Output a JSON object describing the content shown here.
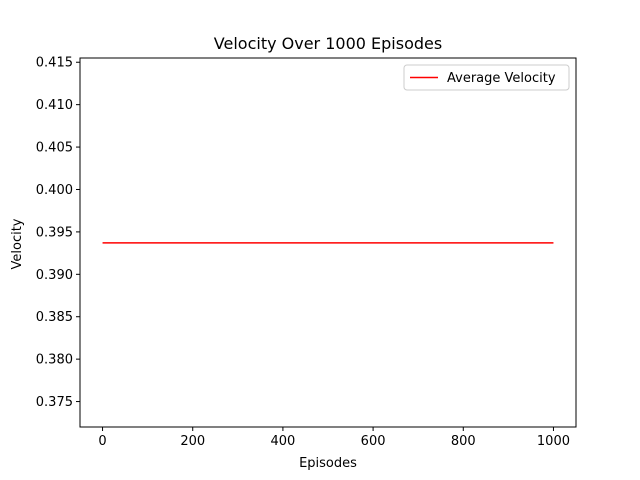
{
  "chart_data": {
    "type": "line",
    "title": "Velocity Over 1000 Episodes",
    "xlabel": "Episodes",
    "ylabel": "Velocity",
    "xlim": [
      -50,
      1050
    ],
    "ylim": [
      0.372,
      0.4155
    ],
    "xticks": [
      0,
      200,
      400,
      600,
      800,
      1000
    ],
    "xtick_labels": [
      "0",
      "200",
      "400",
      "600",
      "800",
      "1000"
    ],
    "yticks": [
      0.375,
      0.38,
      0.385,
      0.39,
      0.395,
      0.4,
      0.405,
      0.41,
      0.415
    ],
    "ytick_labels": [
      "0.375",
      "0.380",
      "0.385",
      "0.390",
      "0.395",
      "0.400",
      "0.405",
      "0.410",
      "0.415"
    ],
    "grid": false,
    "legend_position": "top-right",
    "series": [
      {
        "name": "Average Velocity",
        "color": "#ff0000",
        "x": [
          0,
          1000
        ],
        "y": [
          0.3937,
          0.3937
        ]
      }
    ]
  }
}
